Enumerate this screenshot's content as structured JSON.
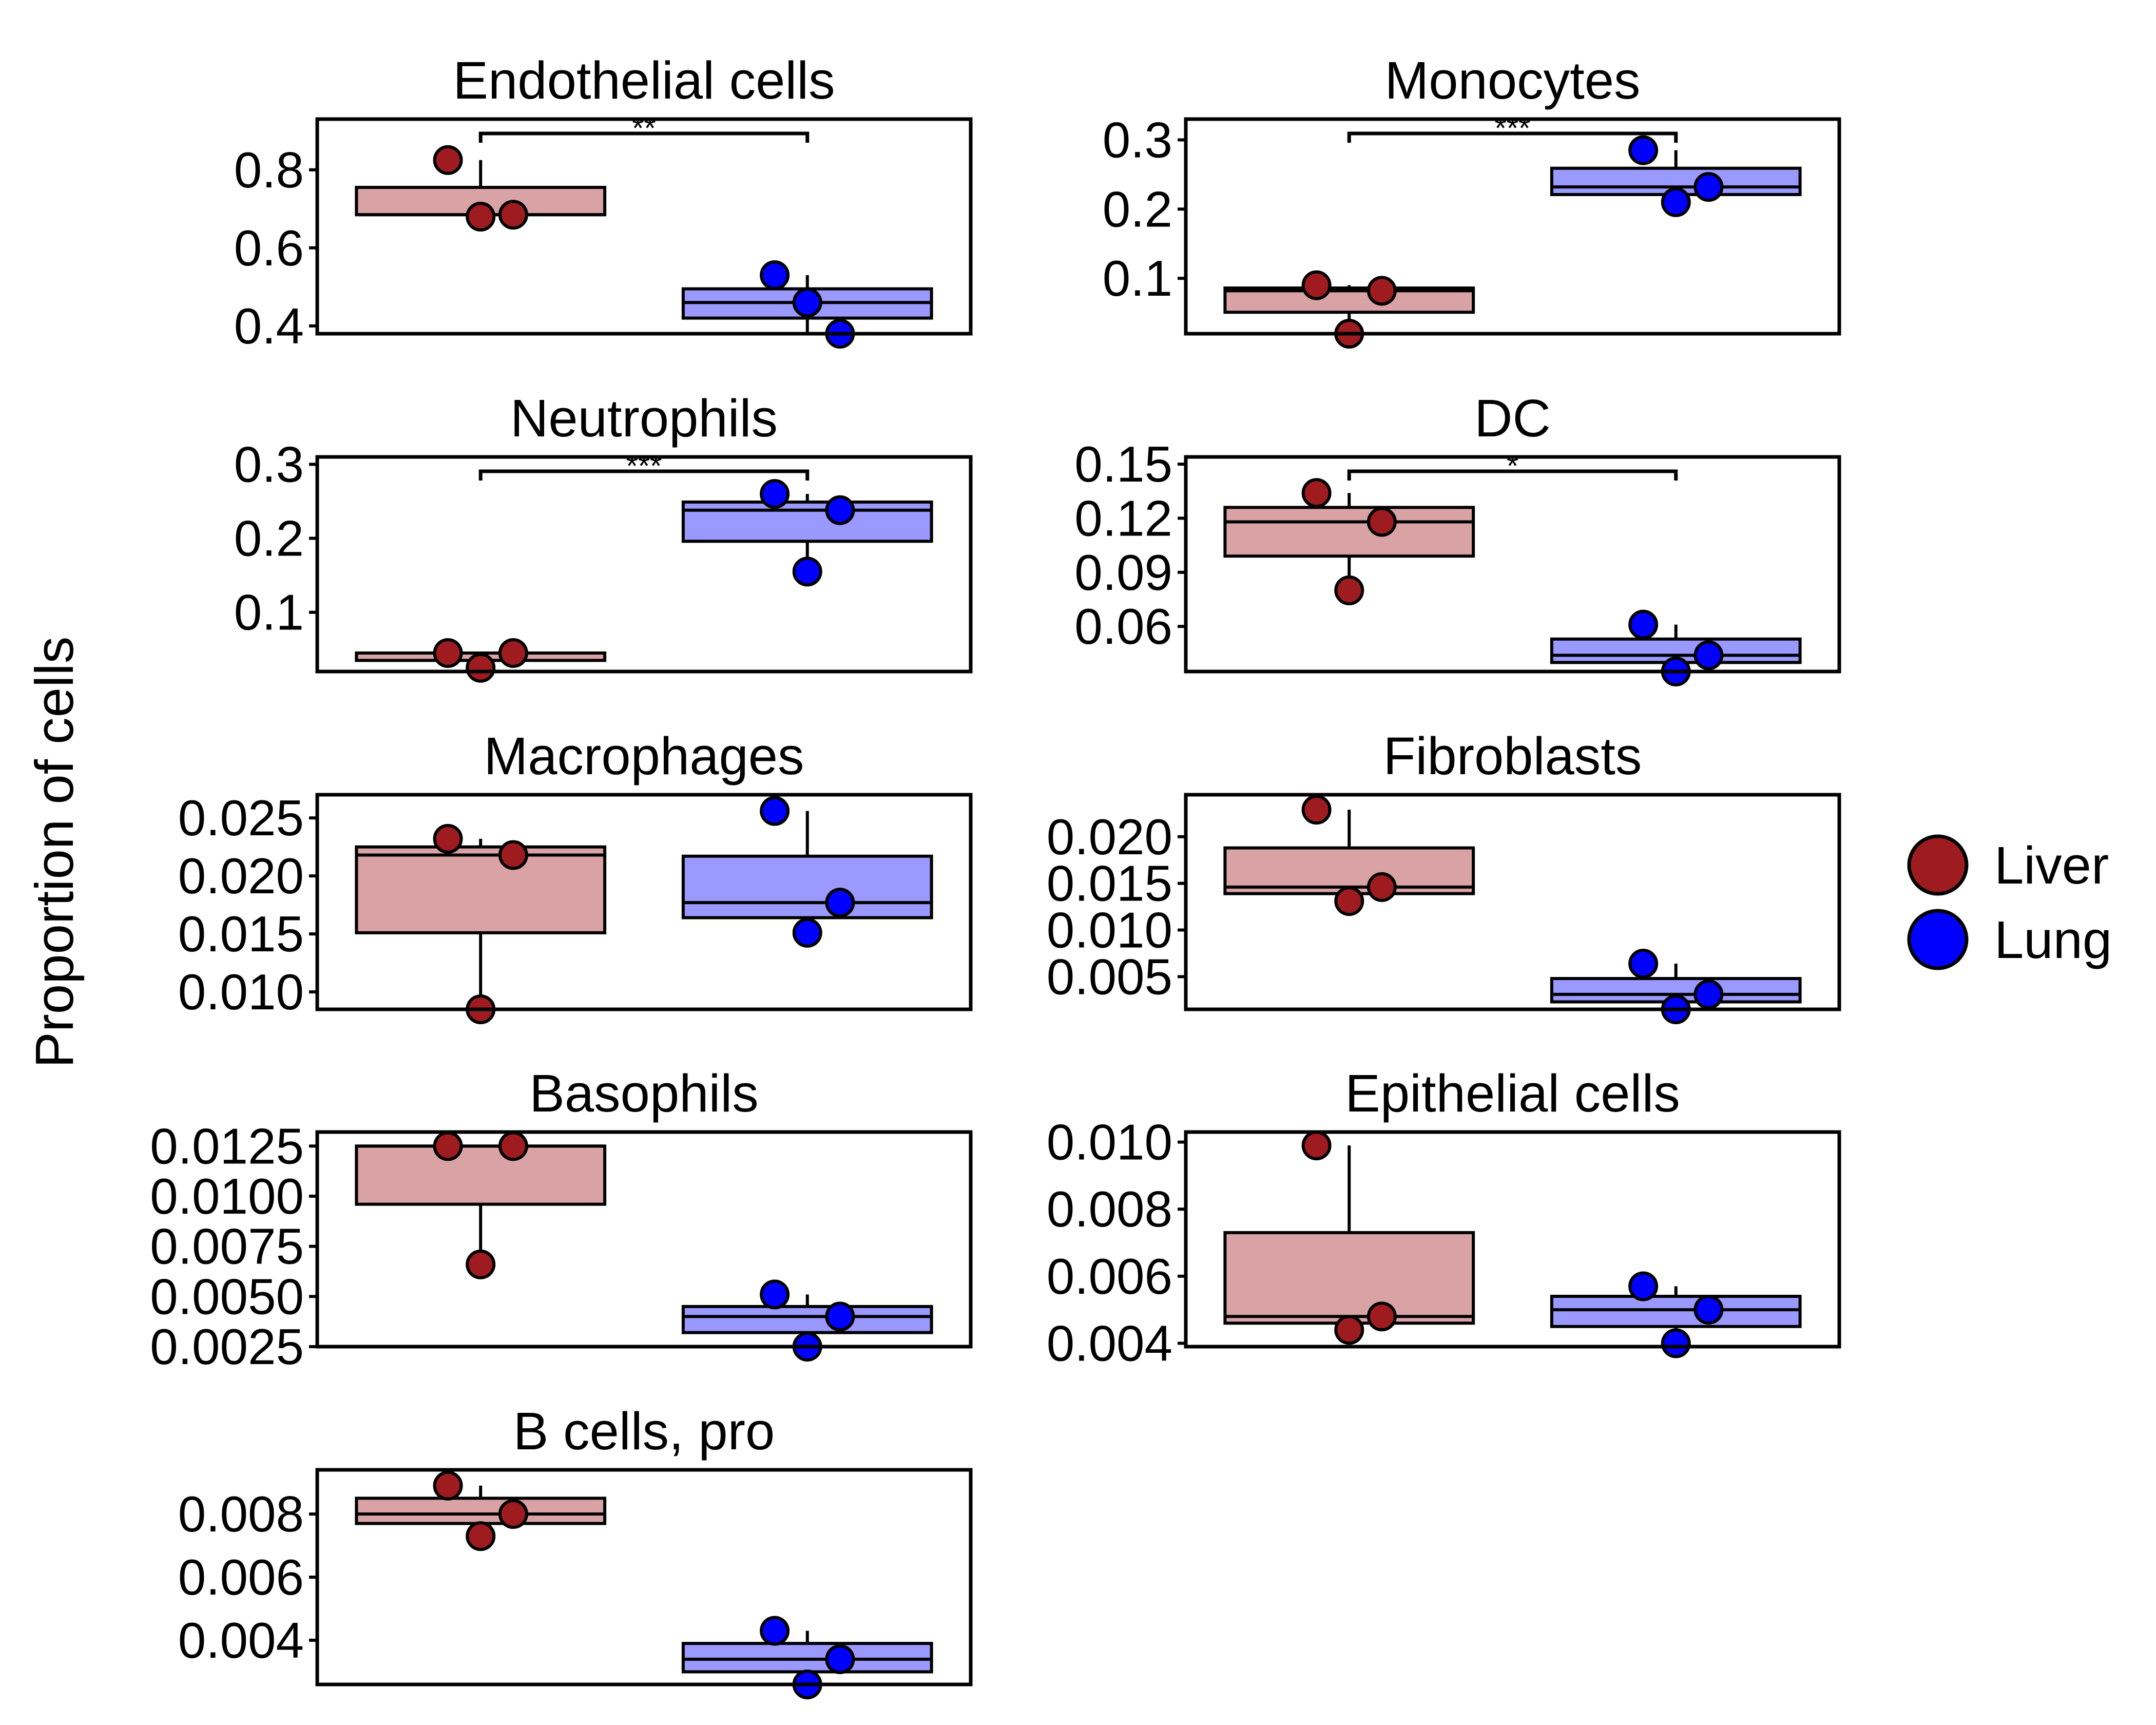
{
  "figure": {
    "ylabel": "Proportion of cells",
    "legend": {
      "placement": "right",
      "entries": [
        {
          "name": "Liver",
          "color": "#9e1b1f"
        },
        {
          "name": "Lung",
          "color": "#0000ff"
        }
      ]
    },
    "colors": {
      "liver_point": "#9e1b1f",
      "liver_box": "#d9a3a5",
      "lung_point": "#0000ff",
      "lung_box": "#9999ff"
    }
  },
  "chart_data": [
    {
      "type": "box",
      "title": "Endothelial cells",
      "ylim": [
        0.38,
        0.93
      ],
      "yticks": [
        0.4,
        0.6,
        0.8
      ],
      "yticklabels": [
        "0.4",
        "0.6",
        "0.8"
      ],
      "significance": "**",
      "groups": [
        {
          "name": "Liver",
          "points": [
            0.825,
            0.68,
            0.685
          ],
          "box": {
            "q1": 0.685,
            "median": 0.685,
            "q3": 0.755,
            "whisker_low": 0.68,
            "whisker_high": 0.825
          }
        },
        {
          "name": "Lung",
          "points": [
            0.53,
            0.46,
            0.38
          ],
          "box": {
            "q1": 0.42,
            "median": 0.46,
            "q3": 0.495,
            "whisker_low": 0.38,
            "whisker_high": 0.53
          }
        }
      ]
    },
    {
      "type": "box",
      "title": "Monocytes",
      "ylim": [
        0.02,
        0.33
      ],
      "yticks": [
        0.1,
        0.2,
        0.3
      ],
      "yticklabels": [
        "0.1",
        "0.2",
        "0.3"
      ],
      "significance": "***",
      "groups": [
        {
          "name": "Liver",
          "points": [
            0.09,
            0.02,
            0.082
          ],
          "box": {
            "q1": 0.051,
            "median": 0.082,
            "q3": 0.086,
            "whisker_low": 0.02,
            "whisker_high": 0.09
          }
        },
        {
          "name": "Lung",
          "points": [
            0.285,
            0.21,
            0.232
          ],
          "box": {
            "q1": 0.221,
            "median": 0.232,
            "q3": 0.259,
            "whisker_low": 0.21,
            "whisker_high": 0.285
          }
        }
      ]
    },
    {
      "type": "box",
      "title": "Neutrophils",
      "ylim": [
        0.02,
        0.31
      ],
      "yticks": [
        0.1,
        0.2,
        0.3
      ],
      "yticklabels": [
        "0.1",
        "0.2",
        "0.3"
      ],
      "significance": "***",
      "groups": [
        {
          "name": "Liver",
          "points": [
            0.045,
            0.025,
            0.045
          ],
          "box": {
            "q1": 0.035,
            "median": 0.045,
            "q3": 0.045,
            "whisker_low": 0.025,
            "whisker_high": 0.045
          }
        },
        {
          "name": "Lung",
          "points": [
            0.26,
            0.155,
            0.238
          ],
          "box": {
            "q1": 0.196,
            "median": 0.238,
            "q3": 0.249,
            "whisker_low": 0.155,
            "whisker_high": 0.26
          }
        }
      ]
    },
    {
      "type": "box",
      "title": "DC",
      "ylim": [
        0.035,
        0.154
      ],
      "yticks": [
        0.06,
        0.09,
        0.12,
        0.15
      ],
      "yticklabels": [
        "0.06",
        "0.09",
        "0.12",
        "0.15"
      ],
      "significance": "*",
      "groups": [
        {
          "name": "Liver",
          "points": [
            0.134,
            0.08,
            0.118
          ],
          "box": {
            "q1": 0.099,
            "median": 0.118,
            "q3": 0.126,
            "whisker_low": 0.08,
            "whisker_high": 0.134
          }
        },
        {
          "name": "Lung",
          "points": [
            0.061,
            0.035,
            0.044
          ],
          "box": {
            "q1": 0.04,
            "median": 0.044,
            "q3": 0.053,
            "whisker_low": 0.035,
            "whisker_high": 0.061
          }
        }
      ]
    },
    {
      "type": "box",
      "title": "Macrophages",
      "ylim": [
        0.0085,
        0.027
      ],
      "yticks": [
        0.01,
        0.015,
        0.02,
        0.025
      ],
      "yticklabels": [
        "0.010",
        "0.015",
        "0.020",
        "0.025"
      ],
      "significance": "",
      "groups": [
        {
          "name": "Liver",
          "points": [
            0.0232,
            0.0085,
            0.0218
          ],
          "box": {
            "q1": 0.0151,
            "median": 0.0218,
            "q3": 0.0225,
            "whisker_low": 0.0085,
            "whisker_high": 0.0232
          }
        },
        {
          "name": "Lung",
          "points": [
            0.0256,
            0.0151,
            0.0177
          ],
          "box": {
            "q1": 0.0164,
            "median": 0.0177,
            "q3": 0.0217,
            "whisker_low": 0.0151,
            "whisker_high": 0.0256
          }
        }
      ]
    },
    {
      "type": "box",
      "title": "Fibroblasts",
      "ylim": [
        0.0015,
        0.0245
      ],
      "yticks": [
        0.005,
        0.01,
        0.015,
        0.02
      ],
      "yticklabels": [
        "0.005",
        "0.010",
        "0.015",
        "0.020"
      ],
      "significance": "",
      "groups": [
        {
          "name": "Liver",
          "points": [
            0.0229,
            0.0131,
            0.0146
          ],
          "box": {
            "q1": 0.0139,
            "median": 0.0146,
            "q3": 0.0188,
            "whisker_low": 0.0131,
            "whisker_high": 0.0229
          }
        },
        {
          "name": "Lung",
          "points": [
            0.0064,
            0.0015,
            0.0031
          ],
          "box": {
            "q1": 0.0023,
            "median": 0.0031,
            "q3": 0.0048,
            "whisker_low": 0.0015,
            "whisker_high": 0.0064
          }
        }
      ]
    },
    {
      "type": "box",
      "title": "Basophils",
      "ylim": [
        0.0025,
        0.0132
      ],
      "yticks": [
        0.0025,
        0.005,
        0.0075,
        0.01,
        0.0125
      ],
      "yticklabels": [
        "0.0025",
        "0.0050",
        "0.0075",
        "0.0100",
        "0.0125"
      ],
      "significance": "",
      "groups": [
        {
          "name": "Liver",
          "points": [
            0.0125,
            0.0066,
            0.0125
          ],
          "box": {
            "q1": 0.0096,
            "median": 0.0125,
            "q3": 0.0125,
            "whisker_low": 0.0066,
            "whisker_high": 0.0125
          }
        },
        {
          "name": "Lung",
          "points": [
            0.0051,
            0.0025,
            0.004
          ],
          "box": {
            "q1": 0.0032,
            "median": 0.004,
            "q3": 0.0045,
            "whisker_low": 0.0025,
            "whisker_high": 0.0051
          }
        }
      ]
    },
    {
      "type": "box",
      "title": "Epithelial cells",
      "ylim": [
        0.0039,
        0.0103
      ],
      "yticks": [
        0.004,
        0.006,
        0.008,
        0.01
      ],
      "yticklabels": [
        "0.004",
        "0.006",
        "0.008",
        "0.010"
      ],
      "significance": "",
      "groups": [
        {
          "name": "Liver",
          "points": [
            0.0099,
            0.0044,
            0.0048
          ],
          "box": {
            "q1": 0.0046,
            "median": 0.0048,
            "q3": 0.0073,
            "whisker_low": 0.0044,
            "whisker_high": 0.0099
          }
        },
        {
          "name": "Lung",
          "points": [
            0.0057,
            0.004,
            0.005
          ],
          "box": {
            "q1": 0.0045,
            "median": 0.005,
            "q3": 0.0054,
            "whisker_low": 0.004,
            "whisker_high": 0.0057
          }
        }
      ]
    },
    {
      "type": "box",
      "title": "B cells, pro",
      "ylim": [
        0.0026,
        0.0094
      ],
      "yticks": [
        0.004,
        0.006,
        0.008
      ],
      "yticklabels": [
        "0.004",
        "0.006",
        "0.008"
      ],
      "significance": "",
      "groups": [
        {
          "name": "Liver",
          "points": [
            0.0089,
            0.0073,
            0.008
          ],
          "box": {
            "q1": 0.0077,
            "median": 0.008,
            "q3": 0.0085,
            "whisker_low": 0.0073,
            "whisker_high": 0.0089
          }
        },
        {
          "name": "Lung",
          "points": [
            0.0043,
            0.0026,
            0.0034
          ],
          "box": {
            "q1": 0.003,
            "median": 0.0034,
            "q3": 0.0039,
            "whisker_low": 0.0026,
            "whisker_high": 0.0043
          }
        }
      ]
    }
  ]
}
